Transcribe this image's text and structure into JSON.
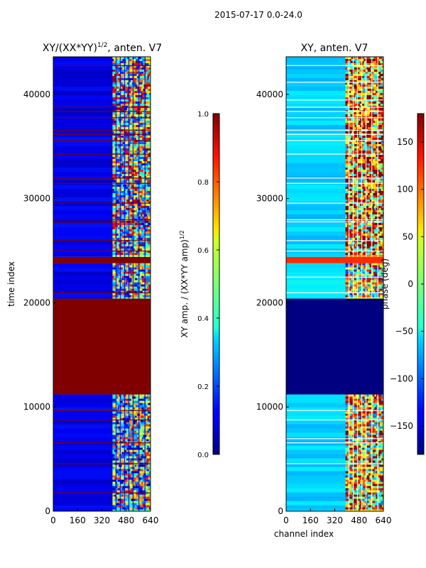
{
  "suptitle": "2015-07-17 0.0-24.0",
  "chart_data": [
    {
      "type": "heatmap",
      "title_main": "XY/(XX*YY)",
      "title_sup": "1/2",
      "title_rest": ", anten. V7",
      "xlabel": "",
      "ylabel": "time index",
      "xlim": [
        0,
        640
      ],
      "ylim": [
        0,
        43600
      ],
      "xticks": [
        "0",
        "160",
        "320",
        "480",
        "640"
      ],
      "yticks": [
        "0",
        "10000",
        "20000",
        "30000",
        "40000"
      ],
      "colormap": "jet",
      "regions": [
        {
          "t0": 0,
          "t1": 11200,
          "c0": 0,
          "c1": 390,
          "value": 0.1
        },
        {
          "t0": 0,
          "t1": 11200,
          "c0": 390,
          "c1": 640,
          "value": 0.45
        },
        {
          "t0": 11200,
          "t1": 20400,
          "c0": 0,
          "c1": 640,
          "value": 1.0
        },
        {
          "t0": 20400,
          "t1": 23800,
          "c0": 0,
          "c1": 390,
          "value": 0.1
        },
        {
          "t0": 20400,
          "t1": 23800,
          "c0": 390,
          "c1": 640,
          "value": 0.5
        },
        {
          "t0": 23800,
          "t1": 24400,
          "c0": 0,
          "c1": 640,
          "value": 1.0
        },
        {
          "t0": 24400,
          "t1": 43600,
          "c0": 0,
          "c1": 390,
          "value": 0.1
        },
        {
          "t0": 24400,
          "t1": 43600,
          "c0": 390,
          "c1": 640,
          "value": 0.55
        }
      ],
      "flagged_rows": [
        42800,
        38800,
        38400,
        37800,
        36600,
        36200,
        35600,
        34300,
        32000,
        31500,
        29600,
        28000,
        27800,
        26000,
        25000,
        21000,
        9700,
        8800,
        6600,
        4600,
        1800
      ],
      "colorbar": {
        "label_main": "XY amp. / (XX*YY amp)",
        "label_sup": "1/2",
        "ticks": [
          "0.0",
          "0.2",
          "0.4",
          "0.6",
          "0.8",
          "1.0"
        ],
        "range": [
          0,
          1
        ]
      }
    },
    {
      "type": "heatmap",
      "title_main": "XY, anten. V7",
      "xlabel": "channel index",
      "ylabel": "",
      "xlim": [
        0,
        640
      ],
      "ylim": [
        0,
        43600
      ],
      "xticks": [
        "0",
        "160",
        "320",
        "480",
        "640"
      ],
      "yticks": [
        "0",
        "10000",
        "20000",
        "30000",
        "40000"
      ],
      "colormap": "jet",
      "regions": [
        {
          "t0": 0,
          "t1": 11200,
          "c0": 0,
          "c1": 390,
          "value": -60
        },
        {
          "t0": 0,
          "t1": 11200,
          "c0": 390,
          "c1": 640,
          "value": 60
        },
        {
          "t0": 11200,
          "t1": 20400,
          "c0": 0,
          "c1": 640,
          "value": -180
        },
        {
          "t0": 20400,
          "t1": 23800,
          "c0": 0,
          "c1": 390,
          "value": -55
        },
        {
          "t0": 20400,
          "t1": 23800,
          "c0": 390,
          "c1": 640,
          "value": 30
        },
        {
          "t0": 23800,
          "t1": 24400,
          "c0": 0,
          "c1": 640,
          "value": 120
        },
        {
          "t0": 24400,
          "t1": 43600,
          "c0": 0,
          "c1": 390,
          "value": -60
        },
        {
          "t0": 24400,
          "t1": 43600,
          "c0": 390,
          "c1": 640,
          "value": 90
        }
      ],
      "flagged_rows": [
        42800,
        41200,
        39500,
        38800,
        38400,
        37800,
        36600,
        36200,
        35600,
        34300,
        32000,
        31500,
        29600,
        28000,
        27800,
        26000,
        25000,
        22500,
        21000,
        9700,
        8800,
        7000,
        6600,
        4600
      ],
      "colorbar": {
        "label_main": "phase (deg)",
        "label_sup": "",
        "ticks": [
          "−150",
          "−100",
          "−50",
          "0",
          "50",
          "100",
          "150"
        ],
        "tick_values": [
          -150,
          -100,
          -50,
          0,
          50,
          100,
          150
        ],
        "range": [
          -180,
          180
        ]
      }
    }
  ]
}
